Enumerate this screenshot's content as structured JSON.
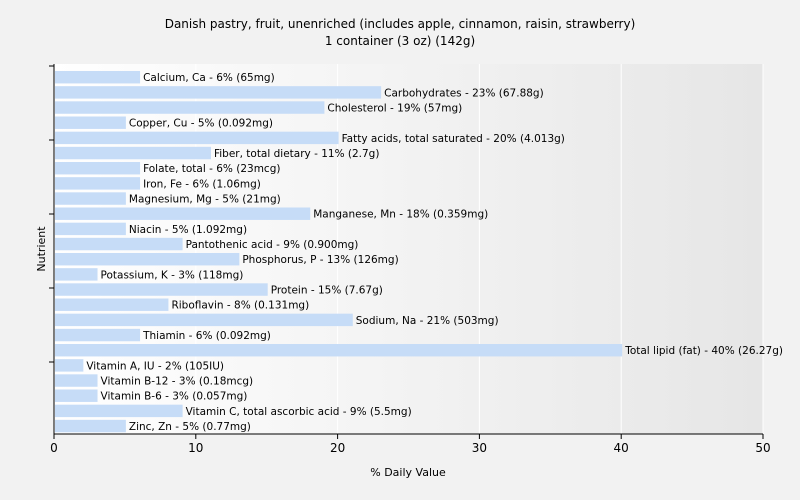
{
  "chart_data": {
    "type": "bar",
    "orientation": "horizontal",
    "title_line1": "Danish pastry, fruit, unenriched (includes apple, cinnamon, raisin, strawberry)",
    "title_line2": "1 container (3 oz) (142g)",
    "xlabel": "% Daily Value",
    "ylabel": "Nutrient",
    "xlim": [
      0,
      50
    ],
    "xticks": [
      "0",
      "10",
      "20",
      "30",
      "40",
      "50"
    ],
    "grid": true,
    "bar_color": "#c6dcf7",
    "categories": [
      "Calcium, Ca",
      "Carbohydrates",
      "Cholesterol",
      "Copper, Cu",
      "Fatty acids, total saturated",
      "Fiber, total dietary",
      "Folate, total",
      "Iron, Fe",
      "Magnesium, Mg",
      "Manganese, Mn",
      "Niacin",
      "Pantothenic acid",
      "Phosphorus, P",
      "Potassium, K",
      "Protein",
      "Riboflavin",
      "Sodium, Na",
      "Thiamin",
      "Total lipid (fat)",
      "Vitamin A, IU",
      "Vitamin B-12",
      "Vitamin B-6",
      "Vitamin C, total ascorbic acid",
      "Zinc, Zn"
    ],
    "values": [
      6,
      23,
      19,
      5,
      20,
      11,
      6,
      6,
      5,
      18,
      5,
      9,
      13,
      3,
      15,
      8,
      21,
      6,
      40,
      2,
      3,
      3,
      9,
      5
    ],
    "labels": [
      "Calcium, Ca - 6% (65mg)",
      "Carbohydrates - 23% (67.88g)",
      "Cholesterol - 19% (57mg)",
      "Copper, Cu - 5% (0.092mg)",
      "Fatty acids, total saturated - 20% (4.013g)",
      "Fiber, total dietary - 11% (2.7g)",
      "Folate, total - 6% (23mcg)",
      "Iron, Fe - 6% (1.06mg)",
      "Magnesium, Mg - 5% (21mg)",
      "Manganese, Mn - 18% (0.359mg)",
      "Niacin - 5% (1.092mg)",
      "Pantothenic acid - 9% (0.900mg)",
      "Phosphorus, P - 13% (126mg)",
      "Potassium, K - 3% (118mg)",
      "Protein - 15% (7.67g)",
      "Riboflavin - 8% (0.131mg)",
      "Sodium, Na - 21% (503mg)",
      "Thiamin - 6% (0.092mg)",
      "Total lipid (fat) - 40% (26.27g)",
      "Vitamin A, IU - 2% (105IU)",
      "Vitamin B-12 - 3% (0.18mcg)",
      "Vitamin B-6 - 3% (0.057mg)",
      "Vitamin C, total ascorbic acid - 9% (5.5mg)",
      "Zinc, Zn - 5% (0.77mg)"
    ]
  }
}
